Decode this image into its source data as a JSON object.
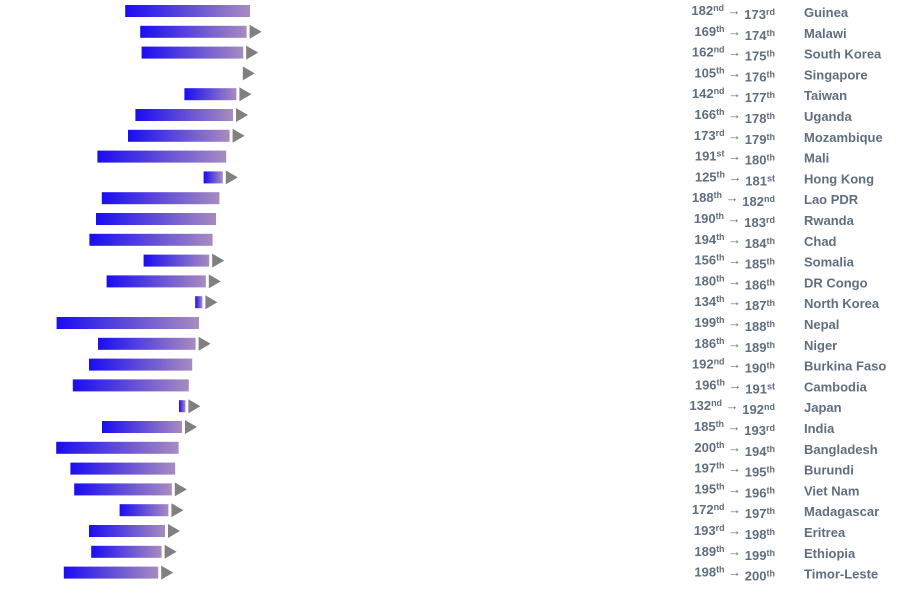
{
  "chart_data": {
    "type": "bar",
    "description_of_encoding": "rank change shown as arrow bars",
    "rows": [
      {
        "country": "Guinea",
        "from": 182,
        "to": 173,
        "from_sfx": "nd",
        "to_sfx": "rd"
      },
      {
        "country": "Malawi",
        "from": 169,
        "to": 174,
        "from_sfx": "th",
        "to_sfx": "th"
      },
      {
        "country": "South Korea",
        "from": 162,
        "to": 175,
        "from_sfx": "nd",
        "to_sfx": "th"
      },
      {
        "country": "Singapore",
        "from": 105,
        "to": 176,
        "from_sfx": "th",
        "to_sfx": "th"
      },
      {
        "country": "Taiwan",
        "from": 142,
        "to": 177,
        "from_sfx": "nd",
        "to_sfx": "th"
      },
      {
        "country": "Uganda",
        "from": 166,
        "to": 178,
        "from_sfx": "th",
        "to_sfx": "th"
      },
      {
        "country": "Mozambique",
        "from": 173,
        "to": 179,
        "from_sfx": "rd",
        "to_sfx": "th"
      },
      {
        "country": "Mali",
        "from": 191,
        "to": 180,
        "from_sfx": "st",
        "to_sfx": "th"
      },
      {
        "country": "Hong Kong",
        "from": 125,
        "to": 181,
        "from_sfx": "th",
        "to_sfx": "st"
      },
      {
        "country": "Lao PDR",
        "from": 188,
        "to": 182,
        "from_sfx": "th",
        "to_sfx": "nd"
      },
      {
        "country": "Rwanda",
        "from": 190,
        "to": 183,
        "from_sfx": "th",
        "to_sfx": "rd"
      },
      {
        "country": "Chad",
        "from": 194,
        "to": 184,
        "from_sfx": "th",
        "to_sfx": "th"
      },
      {
        "country": "Somalia",
        "from": 156,
        "to": 185,
        "from_sfx": "th",
        "to_sfx": "th"
      },
      {
        "country": "DR Congo",
        "from": 180,
        "to": 186,
        "from_sfx": "th",
        "to_sfx": "th"
      },
      {
        "country": "North Korea",
        "from": 134,
        "to": 187,
        "from_sfx": "th",
        "to_sfx": "th"
      },
      {
        "country": "Nepal",
        "from": 199,
        "to": 188,
        "from_sfx": "th",
        "to_sfx": "th"
      },
      {
        "country": "Niger",
        "from": 186,
        "to": 189,
        "from_sfx": "th",
        "to_sfx": "th"
      },
      {
        "country": "Burkina Faso",
        "from": 192,
        "to": 190,
        "from_sfx": "nd",
        "to_sfx": "th"
      },
      {
        "country": "Cambodia",
        "from": 196,
        "to": 191,
        "from_sfx": "th",
        "to_sfx": "st"
      },
      {
        "country": "Japan",
        "from": 132,
        "to": 192,
        "from_sfx": "nd",
        "to_sfx": "nd"
      },
      {
        "country": "India",
        "from": 185,
        "to": 193,
        "from_sfx": "th",
        "to_sfx": "rd"
      },
      {
        "country": "Bangladesh",
        "from": 200,
        "to": 194,
        "from_sfx": "th",
        "to_sfx": "th"
      },
      {
        "country": "Burundi",
        "from": 197,
        "to": 195,
        "from_sfx": "th",
        "to_sfx": "th"
      },
      {
        "country": "Viet Nam",
        "from": 195,
        "to": 196,
        "from_sfx": "th",
        "to_sfx": "th"
      },
      {
        "country": "Madagascar",
        "from": 172,
        "to": 197,
        "from_sfx": "nd",
        "to_sfx": "th"
      },
      {
        "country": "Eritrea",
        "from": 193,
        "to": 198,
        "from_sfx": "rd",
        "to_sfx": "th"
      },
      {
        "country": "Ethiopia",
        "from": 189,
        "to": 199,
        "from_sfx": "th",
        "to_sfx": "th"
      },
      {
        "country": "Timor-Leste",
        "from": 198,
        "to": 200,
        "from_sfx": "th",
        "to_sfx": "th"
      }
    ],
    "bar_values": [
      -156,
      -133,
      -127,
      0,
      -65,
      -122,
      -127,
      -161,
      -24,
      -147,
      -150,
      -154,
      -82,
      -124,
      -9,
      -178,
      -122,
      -129,
      -145,
      -8,
      -100,
      -153,
      -131,
      -122,
      -61,
      -95,
      -88,
      -118
    ],
    "arrow_label": "→",
    "colors": {
      "bar_start": "#1a0df2",
      "bar_end": "#a78bbf",
      "arrow": "#808080",
      "text": "#5f6f7f"
    }
  }
}
